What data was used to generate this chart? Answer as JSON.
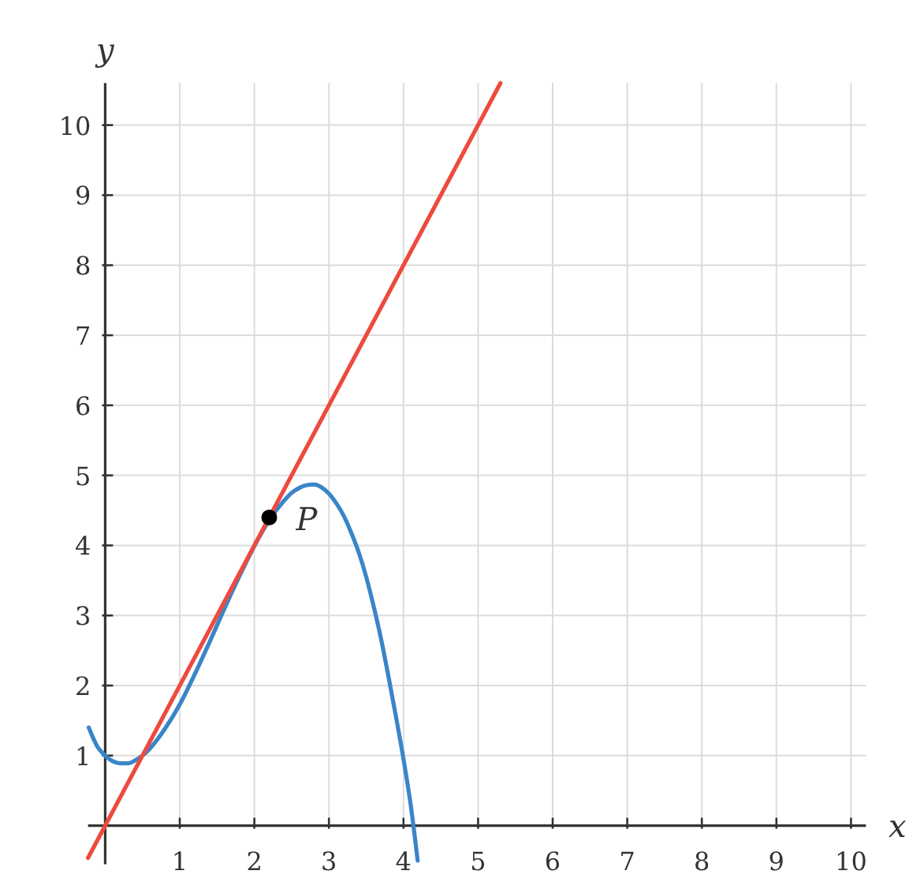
{
  "chart_data": {
    "type": "line",
    "xlabel": "x",
    "ylabel": "y",
    "xlim": [
      -0.23,
      10.2
    ],
    "ylim": [
      -0.55,
      10.6
    ],
    "xticks": [
      1,
      2,
      3,
      4,
      5,
      6,
      7,
      8,
      9,
      10
    ],
    "yticks": [
      1,
      2,
      3,
      4,
      5,
      6,
      7,
      8,
      9,
      10
    ],
    "grid": true,
    "series": [
      {
        "color": "#3a85c8",
        "x": [
          -0.22,
          -0.1,
          0,
          0.1,
          0.2,
          0.3,
          0.4,
          0.5,
          0.6,
          0.8,
          1.0,
          1.2,
          1.4,
          1.6,
          1.8,
          2.0,
          2.2,
          2.4,
          2.5,
          2.6,
          2.7,
          2.8,
          2.9,
          3.0,
          3.1,
          3.2,
          3.3,
          3.4,
          3.5,
          3.6,
          3.7,
          3.8,
          3.9,
          4.0,
          4.1,
          4.19
        ],
        "values": [
          1.4,
          1.12,
          1.0,
          0.92,
          0.89,
          0.89,
          0.93,
          1.0,
          1.1,
          1.38,
          1.73,
          2.16,
          2.62,
          3.1,
          3.56,
          3.99,
          4.36,
          4.64,
          4.75,
          4.82,
          4.86,
          4.87,
          4.83,
          4.74,
          4.6,
          4.42,
          4.18,
          3.9,
          3.55,
          3.13,
          2.66,
          2.12,
          1.55,
          0.95,
          0.27,
          -0.5
        ]
      },
      {
        "color": "#ee4a3e",
        "x": [
          -0.23,
          5.3
        ],
        "values": [
          -0.46,
          10.6
        ]
      },
      {
        "type": "scatter",
        "color": "#000000",
        "marker": "circle",
        "x": [
          2.2
        ],
        "values": [
          4.4
        ]
      }
    ],
    "annotations": [
      {
        "text": "P",
        "x": 2.2,
        "y": 4.4
      }
    ]
  }
}
